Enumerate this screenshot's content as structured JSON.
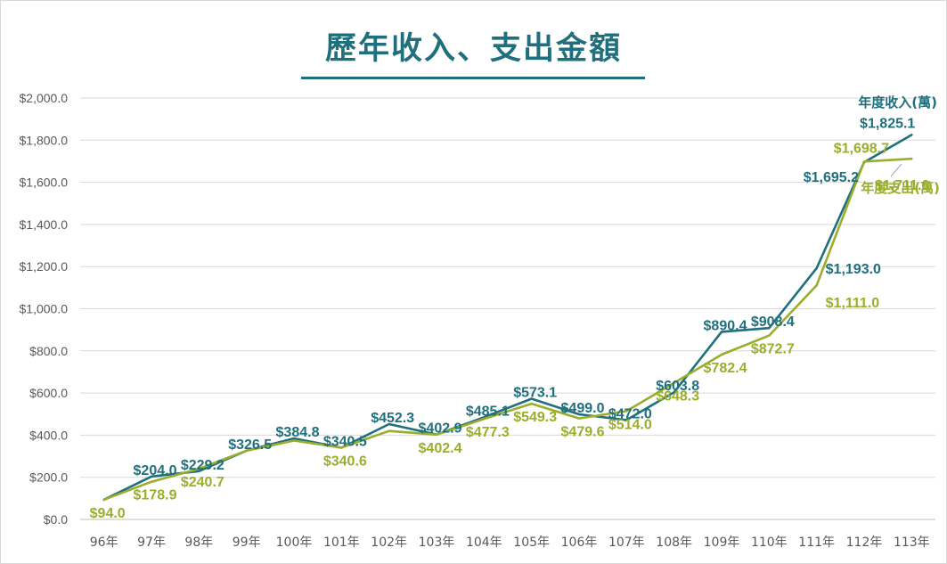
{
  "chart_data": {
    "type": "line",
    "title": "歷年收入、支出金額",
    "xlabel": "",
    "ylabel": "",
    "ylim": [
      0,
      2000
    ],
    "yticks": [
      "$0.0",
      "$200.0",
      "$400.0",
      "$600.0",
      "$800.0",
      "$1,000.0",
      "$1,200.0",
      "$1,400.0",
      "$1,600.0",
      "$1,800.0",
      "$2,000.0"
    ],
    "ytick_values": [
      0,
      200,
      400,
      600,
      800,
      1000,
      1200,
      1400,
      1600,
      1800,
      2000
    ],
    "grid": true,
    "categories": [
      "96年",
      "97年",
      "98年",
      "99年",
      "100年",
      "101年",
      "102年",
      "103年",
      "104年",
      "105年",
      "106年",
      "107年",
      "108年",
      "109年",
      "110年",
      "111年",
      "112年",
      "113年"
    ],
    "series": [
      {
        "name": "年度收入(萬)",
        "color": "#1f6f7d",
        "values": [
          94.0,
          204.0,
          229.2,
          326.5,
          384.8,
          340.5,
          452.3,
          402.9,
          485.1,
          573.1,
          499.0,
          472.0,
          603.8,
          890.4,
          908.4,
          1193.0,
          1695.2,
          1825.1
        ],
        "labels": [
          "",
          "$204.0",
          "$229.2",
          "$326.5",
          "$384.8",
          "$340.5",
          "$452.3",
          "$402.9",
          "$485.1",
          "$573.1",
          "$499.0",
          "$472.0",
          "$603.8",
          "$890.4",
          "$908.4",
          "$1,193.0",
          "$1,695.2",
          "$1,825.1"
        ]
      },
      {
        "name": "年度支出(萬)",
        "color": "#9aae2c",
        "values": [
          94.0,
          178.9,
          240.7,
          326.5,
          374.0,
          340.6,
          420.0,
          402.4,
          477.3,
          549.3,
          479.6,
          514.0,
          648.3,
          782.4,
          872.7,
          1111.0,
          1698.7,
          1711.6
        ],
        "labels": [
          "$94.0",
          "$178.9",
          "$240.7",
          "",
          "",
          "$340.6",
          "",
          "$402.4",
          "$477.3",
          "$549.3",
          "$479.6",
          "$514.0",
          "$648.3",
          "$782.4",
          "$872.7",
          "$1,111.0",
          "$1,698.7",
          "$1,711.6"
        ]
      }
    ]
  }
}
